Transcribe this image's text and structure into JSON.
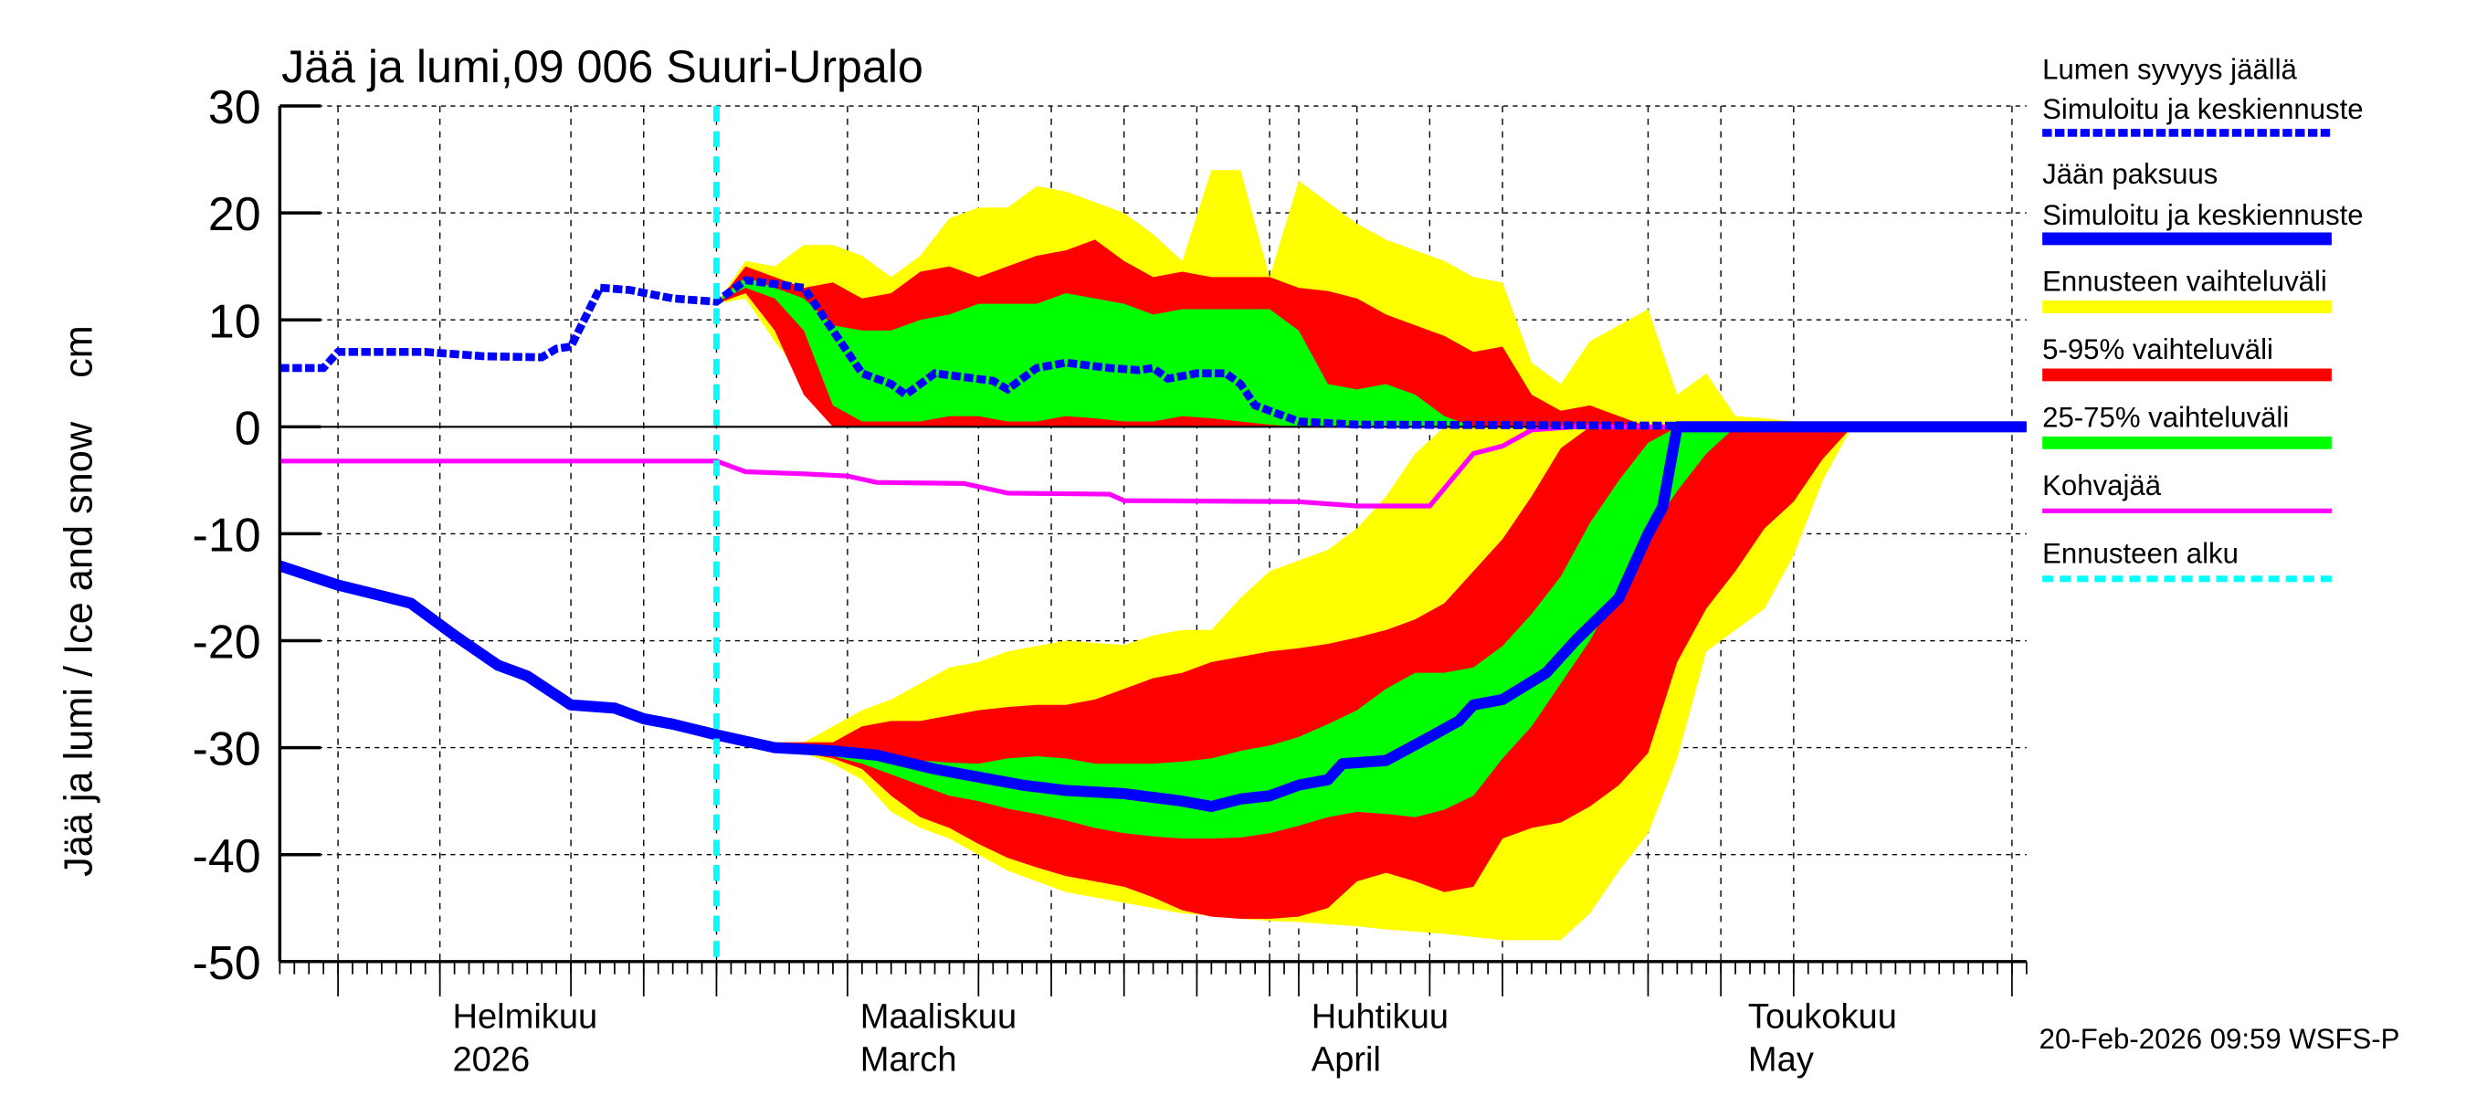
{
  "chart_data": {
    "type": "area",
    "title": "Jää ja lumi,09 006 Suuri-Urpalo",
    "ylabel": "Jää ja lumi / Ice and snow    cm",
    "ylim": [
      -50,
      30
    ],
    "yticks": [
      30,
      20,
      10,
      0,
      -10,
      -20,
      -30,
      -40,
      -50
    ],
    "xlim": [
      "2026-01-21",
      "2026-05-21"
    ],
    "x_month_labels": [
      {
        "date": "2026-02-01",
        "line1": "Helmikuu",
        "line2": "2026"
      },
      {
        "date": "2026-03-01",
        "line1": "Maaliskuu",
        "line2": "March"
      },
      {
        "date": "2026-04-01",
        "line1": "Huhtikuu",
        "line2": "April"
      },
      {
        "date": "2026-05-01",
        "line1": "Toukokuu",
        "line2": "May"
      }
    ],
    "grid": true,
    "grid_dates": [
      "2026-01-25",
      "2026-02-01",
      "2026-02-10",
      "2026-02-15",
      "2026-02-20",
      "2026-03-01",
      "2026-03-10",
      "2026-03-15",
      "2026-03-20",
      "2026-03-25",
      "2026-03-30",
      "2026-04-01",
      "2026-04-05",
      "2026-04-10",
      "2026-04-15",
      "2026-04-25",
      "2026-04-30",
      "2026-05-05",
      "2026-05-20"
    ],
    "forecast_start": "2026-02-20",
    "legend_position": "right",
    "colors": {
      "snow": "#0000ff",
      "ice": "#0000ff",
      "range_full": "#ffff00",
      "range_5_95": "#ff0000",
      "range_25_75": "#00ff00",
      "slush": "#ff00ff",
      "forecast_start": "#00ffff"
    },
    "band_dates": [
      "2026-02-20",
      "2026-02-22",
      "2026-02-24",
      "2026-02-26",
      "2026-02-28",
      "2026-03-02",
      "2026-03-04",
      "2026-03-06",
      "2026-03-08",
      "2026-03-10",
      "2026-03-12",
      "2026-03-14",
      "2026-03-16",
      "2026-03-18",
      "2026-03-20",
      "2026-03-22",
      "2026-03-24",
      "2026-03-26",
      "2026-03-28",
      "2026-03-30",
      "2026-04-01",
      "2026-04-03",
      "2026-04-05",
      "2026-04-07",
      "2026-04-09",
      "2026-04-11",
      "2026-04-13",
      "2026-04-15",
      "2026-04-17",
      "2026-04-19",
      "2026-04-21",
      "2026-04-23",
      "2026-04-25",
      "2026-04-27",
      "2026-04-29",
      "2026-05-01",
      "2026-05-03",
      "2026-05-05",
      "2026-05-07",
      "2026-05-09"
    ],
    "bands": [
      {
        "name": "Ennusteen vaihteluväli",
        "color": "#ffff00",
        "part": "snow",
        "high": [
          11.5,
          15.5,
          15,
          17,
          17,
          16,
          14,
          16,
          19.5,
          20.5,
          20.5,
          22.5,
          22,
          21,
          20,
          18,
          15.5,
          24,
          24,
          14,
          23,
          21,
          19,
          17.5,
          16.5,
          15.5,
          14,
          13.5,
          6,
          4,
          8,
          9.5,
          11,
          3,
          5,
          1,
          0.8,
          0.5,
          0,
          0
        ],
        "low": [
          11.5,
          12,
          8,
          4.5,
          0.5,
          0,
          0,
          0,
          0,
          0,
          0,
          0,
          0,
          0,
          0,
          0,
          0,
          0,
          0,
          0,
          0,
          0,
          0,
          0,
          0,
          0,
          0,
          0,
          0,
          0,
          0,
          0,
          0,
          0,
          0,
          0,
          0,
          0,
          0,
          0
        ]
      },
      {
        "name": "5-95% vaihteluväli",
        "color": "#ff0000",
        "part": "snow",
        "high": [
          11.5,
          15,
          14,
          13,
          13.5,
          12,
          12.5,
          14.5,
          15,
          14,
          15,
          16,
          16.5,
          17.5,
          15.5,
          14,
          14.5,
          14,
          14,
          14,
          13,
          12.7,
          12,
          10.5,
          9.5,
          8.5,
          7,
          7.5,
          3,
          1.5,
          2,
          1,
          0,
          0,
          0,
          0,
          0,
          0,
          0,
          0
        ],
        "low": [
          11.5,
          12.5,
          9,
          3,
          0,
          0,
          0,
          0,
          0,
          0,
          0,
          0,
          0,
          0,
          0,
          0,
          0,
          0,
          0,
          0,
          0,
          0,
          0,
          0,
          0,
          0,
          0,
          0,
          0,
          0,
          0,
          0,
          0,
          0,
          0,
          0,
          0,
          0,
          0,
          0
        ]
      },
      {
        "name": "25-75% vaihteluväli",
        "color": "#00ff00",
        "part": "snow",
        "high": [
          11.7,
          14,
          13,
          12,
          9.5,
          9,
          9,
          10,
          10.5,
          11.5,
          11.5,
          11.5,
          12.5,
          12,
          11.5,
          10.5,
          11,
          11,
          11,
          11,
          9,
          4,
          3.5,
          4,
          3,
          1,
          0,
          0,
          0,
          0,
          0,
          0,
          0,
          0,
          0,
          0,
          0,
          0,
          0,
          0
        ],
        "low": [
          11.7,
          13,
          12,
          9,
          2,
          0.5,
          0.5,
          0.5,
          1,
          1,
          0.5,
          0.5,
          1,
          0.8,
          0.5,
          0.5,
          1,
          0.8,
          0.5,
          0.2,
          0,
          0,
          0,
          0,
          0,
          0,
          0,
          0,
          0,
          0,
          0,
          0,
          0,
          0,
          0,
          0,
          0,
          0,
          0,
          0
        ]
      },
      {
        "name": "Ennusteen vaihteluväli",
        "color": "#ffff00",
        "part": "ice",
        "high": [
          -29,
          -29.3,
          -29.5,
          -29.5,
          -28,
          -26.5,
          -25.5,
          -24,
          -22.5,
          -22,
          -21,
          -20.5,
          -20,
          -20.2,
          -20.4,
          -19.5,
          -19,
          -19,
          -16,
          -13.5,
          -12.5,
          -11.5,
          -9.5,
          -6.5,
          -2.5,
          0,
          0,
          0,
          0,
          0,
          0,
          0,
          0,
          0,
          0,
          0,
          0,
          0,
          0,
          0
        ],
        "low": [
          -29,
          -29.5,
          -30,
          -30.5,
          -31.5,
          -33,
          -36,
          -37.5,
          -38.5,
          -40,
          -41.5,
          -42.5,
          -43.5,
          -44,
          -44.5,
          -45,
          -45.5,
          -45.7,
          -46,
          -46.2,
          -46.3,
          -46.5,
          -46.7,
          -47,
          -47.2,
          -47.4,
          -47.7,
          -48,
          -48,
          -48,
          -45.5,
          -41.5,
          -38,
          -31,
          -21,
          -19,
          -17,
          -12,
          -5,
          0
        ]
      },
      {
        "name": "5-95% vaihteluväli",
        "color": "#ff0000",
        "part": "ice",
        "high": [
          -29,
          -29.3,
          -29.5,
          -29.5,
          -29.5,
          -28,
          -27.5,
          -27.5,
          -27,
          -26.5,
          -26.2,
          -26,
          -26,
          -25.5,
          -24.5,
          -23.5,
          -23,
          -22,
          -21.5,
          -21,
          -20.7,
          -20.3,
          -19.7,
          -19,
          -18,
          -16.5,
          -13.5,
          -10.5,
          -6.5,
          -2,
          0,
          0,
          0,
          0,
          0,
          0,
          0,
          0,
          0,
          0
        ],
        "low": [
          -29,
          -29.8,
          -30.2,
          -30.5,
          -31,
          -32,
          -34.5,
          -36.5,
          -37.5,
          -39,
          -40.3,
          -41.2,
          -42,
          -42.5,
          -43,
          -44,
          -45.2,
          -45.8,
          -46,
          -46,
          -45.8,
          -45,
          -42.5,
          -41.7,
          -42.5,
          -43.5,
          -43,
          -38.5,
          -37.5,
          -37,
          -35.5,
          -33.5,
          -30.5,
          -22,
          -17,
          -13.5,
          -9.5,
          -7,
          -3,
          0
        ]
      },
      {
        "name": "25-75% vaihteluväli",
        "color": "#00ff00",
        "part": "ice",
        "high": [
          -29,
          -29.5,
          -29.8,
          -30,
          -30.3,
          -30.6,
          -31,
          -31.2,
          -31.4,
          -31.5,
          -31,
          -30.8,
          -31,
          -31.5,
          -31.5,
          -31.5,
          -31.3,
          -31,
          -30.3,
          -29.8,
          -29,
          -27.8,
          -26.5,
          -24.5,
          -23,
          -23,
          -22.5,
          -20.5,
          -17.5,
          -14,
          -9,
          -5,
          -1.5,
          0,
          0,
          0,
          0,
          0,
          0,
          0
        ],
        "low": [
          -29,
          -29.7,
          -30,
          -30.3,
          -30.8,
          -31.5,
          -32.5,
          -33.5,
          -34.5,
          -35,
          -35.7,
          -36.2,
          -36.8,
          -37.5,
          -38,
          -38.3,
          -38.5,
          -38.5,
          -38.4,
          -38,
          -37.3,
          -36.5,
          -36,
          -36.2,
          -36.5,
          -35.8,
          -34.5,
          -31,
          -28,
          -24,
          -20,
          -15,
          -10,
          -6,
          -2.5,
          0,
          0,
          0,
          0,
          0
        ]
      }
    ],
    "series": [
      {
        "name": "Jään paksuus",
        "style": "solid",
        "color": "#0000ff",
        "points": [
          [
            "2026-01-21",
            -13
          ],
          [
            "2026-01-25",
            -14.8
          ],
          [
            "2026-01-28",
            -15.8
          ],
          [
            "2026-01-30",
            -16.5
          ],
          [
            "2026-02-02",
            -19.5
          ],
          [
            "2026-02-05",
            -22.3
          ],
          [
            "2026-02-07",
            -23.3
          ],
          [
            "2026-02-10",
            -26
          ],
          [
            "2026-02-13",
            -26.3
          ],
          [
            "2026-02-15",
            -27.3
          ],
          [
            "2026-02-17",
            -27.8
          ],
          [
            "2026-02-20",
            -28.8
          ],
          [
            "2026-02-24",
            -30
          ],
          [
            "2026-02-28",
            -30.3
          ],
          [
            "2026-03-03",
            -30.7
          ],
          [
            "2026-03-07",
            -32
          ],
          [
            "2026-03-11",
            -33
          ],
          [
            "2026-03-13",
            -33.5
          ],
          [
            "2026-03-16",
            -34
          ],
          [
            "2026-03-20",
            -34.3
          ],
          [
            "2026-03-24",
            -35
          ],
          [
            "2026-03-26",
            -35.5
          ],
          [
            "2026-03-28",
            -34.8
          ],
          [
            "2026-03-30",
            -34.5
          ],
          [
            "2026-04-01",
            -33.5
          ],
          [
            "2026-04-03",
            -33
          ],
          [
            "2026-04-04",
            -31.5
          ],
          [
            "2026-04-07",
            -31.2
          ],
          [
            "2026-04-10",
            -29
          ],
          [
            "2026-04-12",
            -27.5
          ],
          [
            "2026-04-13",
            -26
          ],
          [
            "2026-04-15",
            -25.5
          ],
          [
            "2026-04-18",
            -23
          ],
          [
            "2026-04-20",
            -20
          ],
          [
            "2026-04-23",
            -16
          ],
          [
            "2026-04-25",
            -10
          ],
          [
            "2026-04-26",
            -7.5
          ],
          [
            "2026-04-27",
            0
          ],
          [
            "2026-05-21",
            0
          ]
        ]
      },
      {
        "name": "Kohvajää",
        "style": "solid",
        "color": "#ff00ff",
        "points": [
          [
            "2026-01-21",
            -3.2
          ],
          [
            "2026-02-20",
            -3.2
          ],
          [
            "2026-02-22",
            -4.2
          ],
          [
            "2026-02-26",
            -4.4
          ],
          [
            "2026-03-01",
            -4.6
          ],
          [
            "2026-03-03",
            -5.2
          ],
          [
            "2026-03-09",
            -5.3
          ],
          [
            "2026-03-12",
            -6.2
          ],
          [
            "2026-03-19",
            -6.3
          ],
          [
            "2026-03-20",
            -6.9
          ],
          [
            "2026-04-01",
            -7
          ],
          [
            "2026-04-05",
            -7.4
          ],
          [
            "2026-04-10",
            -7.4
          ],
          [
            "2026-04-13",
            -2.5
          ],
          [
            "2026-04-15",
            -1.8
          ],
          [
            "2026-04-17",
            -0.3
          ],
          [
            "2026-04-20",
            0
          ],
          [
            "2026-05-21",
            0
          ]
        ]
      },
      {
        "name": "Lumen syvyys jäällä",
        "style": "dotted",
        "color": "#0000ff",
        "points": [
          [
            "2026-01-21",
            5.5
          ],
          [
            "2026-01-24",
            5.5
          ],
          [
            "2026-01-25",
            7
          ],
          [
            "2026-01-31",
            7
          ],
          [
            "2026-02-04",
            6.6
          ],
          [
            "2026-02-08",
            6.5
          ],
          [
            "2026-02-09",
            7.3
          ],
          [
            "2026-02-10",
            7.5
          ],
          [
            "2026-02-12",
            13
          ],
          [
            "2026-02-14",
            12.8
          ],
          [
            "2026-02-17",
            12
          ],
          [
            "2026-02-20",
            11.7
          ],
          [
            "2026-02-22",
            13.7
          ],
          [
            "2026-02-26",
            13
          ],
          [
            "2026-02-28",
            9
          ],
          [
            "2026-03-02",
            5
          ],
          [
            "2026-03-04",
            4
          ],
          [
            "2026-03-05",
            3
          ],
          [
            "2026-03-07",
            5
          ],
          [
            "2026-03-11",
            4.3
          ],
          [
            "2026-03-12",
            3.5
          ],
          [
            "2026-03-14",
            5.5
          ],
          [
            "2026-03-16",
            6
          ],
          [
            "2026-03-19",
            5.5
          ],
          [
            "2026-03-21",
            5.3
          ],
          [
            "2026-03-22",
            5.5
          ],
          [
            "2026-03-23",
            4.5
          ],
          [
            "2026-03-25",
            5
          ],
          [
            "2026-03-27",
            5
          ],
          [
            "2026-03-28",
            4
          ],
          [
            "2026-03-29",
            2
          ],
          [
            "2026-04-01",
            0.5
          ],
          [
            "2026-04-05",
            0.2
          ],
          [
            "2026-05-21",
            0
          ]
        ]
      }
    ]
  },
  "legend": [
    {
      "line1": "Lumen syvyys jäällä",
      "line2": "Simuloitu ja keskiennuste",
      "swatch": "dotted-blue"
    },
    {
      "line1": "Jään paksuus",
      "line2": "Simuloitu ja keskiennuste",
      "swatch": "solid-blue"
    },
    {
      "line1": "Ennusteen vaihteluväli",
      "swatch": "yellow"
    },
    {
      "line1": "5-95% vaihteluväli",
      "swatch": "red"
    },
    {
      "line1": "25-75% vaihteluväli",
      "swatch": "green"
    },
    {
      "line1": "Kohvajää",
      "swatch": "magenta"
    },
    {
      "line1": "Ennusteen alku",
      "swatch": "dashed-cyan"
    }
  ],
  "footer": "20-Feb-2026 09:59 WSFS-P"
}
